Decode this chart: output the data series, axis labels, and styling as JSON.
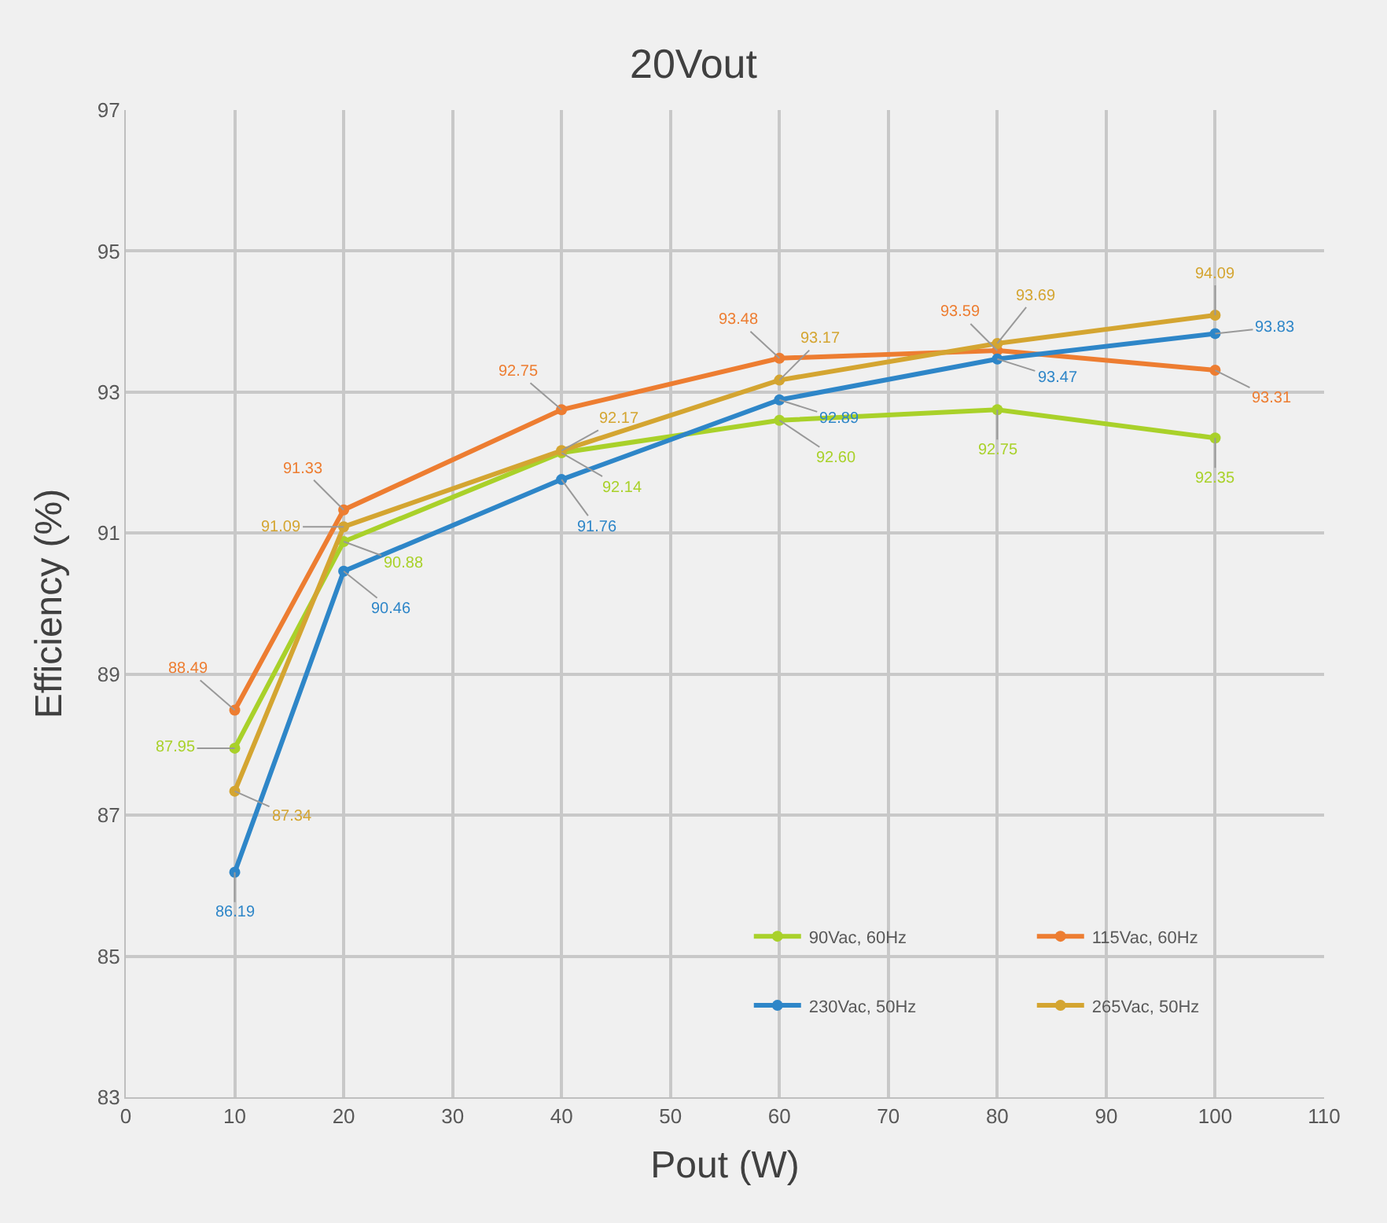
{
  "chart_data": {
    "type": "line",
    "title": "20Vout",
    "xlabel": "Pout (W)",
    "ylabel": "Efficiency (%)",
    "x": [
      10,
      20,
      40,
      60,
      80,
      100
    ],
    "series": [
      {
        "name": "90Vac, 60Hz",
        "color": "#a9d12a",
        "values": [
          87.95,
          90.88,
          92.14,
          92.6,
          92.75,
          92.35
        ],
        "value_labels": [
          "87.95",
          "90.88",
          "92.14",
          "92.60",
          "92.75",
          "92.35"
        ]
      },
      {
        "name": "115Vac, 60Hz",
        "color": "#ed7d31",
        "values": [
          88.49,
          91.33,
          92.75,
          93.48,
          93.59,
          93.31
        ],
        "value_labels": [
          "88.49",
          "91.33",
          "92.75",
          "93.48",
          "93.59",
          "93.31"
        ]
      },
      {
        "name": "230Vac, 50Hz",
        "color": "#2e86c8",
        "values": [
          86.19,
          90.46,
          91.76,
          92.89,
          93.47,
          93.83
        ],
        "value_labels": [
          "86.19",
          "90.46",
          "91.76",
          "92.89",
          "93.47",
          "93.83"
        ]
      },
      {
        "name": "265Vac, 50Hz",
        "color": "#d4a531",
        "values": [
          87.34,
          91.09,
          92.17,
          93.17,
          93.69,
          94.09
        ],
        "value_labels": [
          "87.34",
          "91.09",
          "92.17",
          "93.17",
          "93.69",
          "94.09"
        ]
      }
    ],
    "xlim": [
      0,
      110
    ],
    "xticks": [
      0,
      10,
      20,
      30,
      40,
      50,
      60,
      70,
      80,
      90,
      100,
      110
    ],
    "ylim": [
      83,
      97
    ],
    "yticks": [
      83,
      85,
      87,
      89,
      91,
      93,
      95,
      97
    ],
    "grid": true,
    "legend": "bottom right",
    "marker": "circle",
    "line_style": "solid"
  }
}
